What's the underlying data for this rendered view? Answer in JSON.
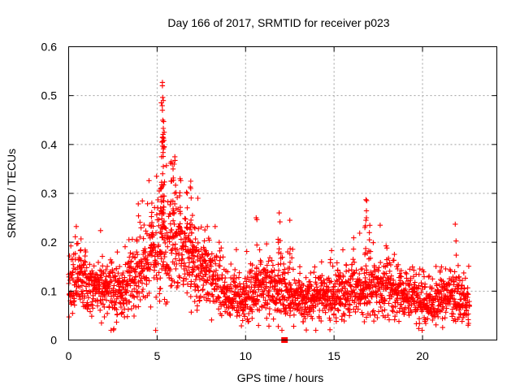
{
  "chart_data": {
    "type": "scatter",
    "title": "Day 166 of 2017, SRMTID for receiver p023",
    "xlabel": "GPS time / hours",
    "ylabel": "SRMTID / TECUs",
    "xlim": [
      0,
      24.2
    ],
    "ylim": [
      0,
      0.6
    ],
    "x_ticks": [
      0,
      5,
      10,
      15,
      20
    ],
    "x_tick_labels": [
      "0",
      "5",
      "10",
      "15",
      "20"
    ],
    "y_ticks": [
      0,
      0.1,
      0.2,
      0.3,
      0.4,
      0.5,
      0.6
    ],
    "y_tick_labels": [
      "0",
      "0.1",
      "0.2",
      "0.3",
      "0.4",
      "0.5",
      "0.6"
    ],
    "grid": true,
    "marker": "plus",
    "color": "#ff0000",
    "series": [
      {
        "name": "SRMTID p023",
        "x_start": 0.0,
        "x_end": 22.65,
        "profile": [
          [
            0.0,
            0.115
          ],
          [
            0.6,
            0.12
          ],
          [
            1.2,
            0.115
          ],
          [
            1.8,
            0.11
          ],
          [
            2.4,
            0.1
          ],
          [
            3.0,
            0.095
          ],
          [
            3.5,
            0.125
          ],
          [
            4.0,
            0.145
          ],
          [
            4.5,
            0.16
          ],
          [
            5.0,
            0.185
          ],
          [
            5.3,
            0.2
          ],
          [
            5.6,
            0.19
          ],
          [
            6.0,
            0.19
          ],
          [
            6.5,
            0.175
          ],
          [
            7.0,
            0.155
          ],
          [
            7.5,
            0.145
          ],
          [
            8.0,
            0.13
          ],
          [
            8.5,
            0.11
          ],
          [
            9.0,
            0.09
          ],
          [
            9.5,
            0.08
          ],
          [
            10.0,
            0.085
          ],
          [
            10.5,
            0.1
          ],
          [
            11.0,
            0.11
          ],
          [
            11.5,
            0.115
          ],
          [
            12.0,
            0.1
          ],
          [
            12.5,
            0.095
          ],
          [
            13.0,
            0.085
          ],
          [
            13.5,
            0.08
          ],
          [
            14.0,
            0.085
          ],
          [
            15.0,
            0.09
          ],
          [
            16.0,
            0.1
          ],
          [
            16.5,
            0.11
          ],
          [
            17.0,
            0.105
          ],
          [
            17.5,
            0.1
          ],
          [
            18.0,
            0.11
          ],
          [
            18.5,
            0.095
          ],
          [
            19.0,
            0.09
          ],
          [
            19.5,
            0.085
          ],
          [
            20.0,
            0.075
          ],
          [
            20.5,
            0.075
          ],
          [
            21.0,
            0.09
          ],
          [
            21.5,
            0.095
          ],
          [
            22.0,
            0.085
          ],
          [
            22.65,
            0.075
          ]
        ],
        "spikes": [
          {
            "x": 5.3,
            "peak": 0.527
          },
          {
            "x": 5.3,
            "peak": 0.52
          },
          {
            "x": 5.35,
            "peak": 0.49
          },
          {
            "x": 5.3,
            "peak": 0.47
          },
          {
            "x": 5.35,
            "peak": 0.433
          },
          {
            "x": 5.4,
            "peak": 0.425
          },
          {
            "x": 5.3,
            "peak": 0.405
          },
          {
            "x": 5.25,
            "peak": 0.375
          },
          {
            "x": 6.0,
            "peak": 0.375
          },
          {
            "x": 5.8,
            "peak": 0.365
          },
          {
            "x": 5.9,
            "peak": 0.35
          },
          {
            "x": 6.3,
            "peak": 0.33
          },
          {
            "x": 6.9,
            "peak": 0.325
          },
          {
            "x": 5.2,
            "peak": 0.31
          },
          {
            "x": 6.9,
            "peak": 0.31
          },
          {
            "x": 6.7,
            "peak": 0.3
          },
          {
            "x": 7.3,
            "peak": 0.29
          },
          {
            "x": 16.8,
            "peak": 0.287
          },
          {
            "x": 4.7,
            "peak": 0.28
          },
          {
            "x": 11.9,
            "peak": 0.26
          },
          {
            "x": 7.0,
            "peak": 0.255
          },
          {
            "x": 10.6,
            "peak": 0.25
          },
          {
            "x": 12.5,
            "peak": 0.245
          },
          {
            "x": 16.8,
            "peak": 0.245
          },
          {
            "x": 21.85,
            "peak": 0.237
          },
          {
            "x": 7.7,
            "peak": 0.225
          },
          {
            "x": 0.7,
            "peak": 0.207
          },
          {
            "x": 17.0,
            "peak": 0.205
          }
        ],
        "gap_marker": {
          "x": 12.2,
          "y": 0.0
        }
      }
    ]
  }
}
